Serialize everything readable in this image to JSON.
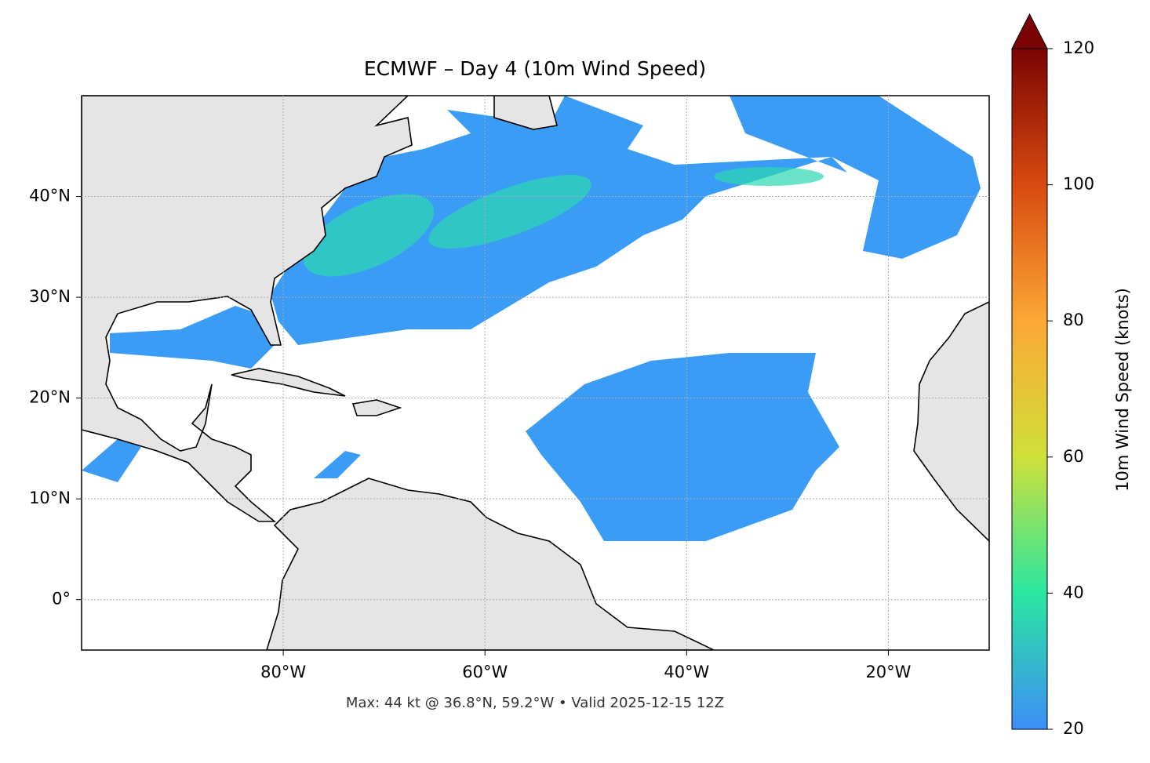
{
  "chart_data": {
    "type": "map",
    "title": "ECMWF – Day 4 (10m Wind Speed)",
    "footer": "Max: 44 kt @ 36.8°N, 59.2°W • Valid 2025-12-15 12Z",
    "xlim": [
      -100,
      -10
    ],
    "xticks": [
      {
        "value": -80,
        "label": "80°W"
      },
      {
        "value": -60,
        "label": "60°W"
      },
      {
        "value": -40,
        "label": "40°W"
      },
      {
        "value": -20,
        "label": "20°W"
      }
    ],
    "ylim": [
      -5,
      50
    ],
    "yticks": [
      {
        "value": 0,
        "label": "0°"
      },
      {
        "value": 10,
        "label": "10°N"
      },
      {
        "value": 20,
        "label": "20°N"
      },
      {
        "value": 30,
        "label": "30°N"
      },
      {
        "value": 40,
        "label": "40°N"
      }
    ],
    "grid": true,
    "colorbar": {
      "label": "10m Wind Speed (knots)",
      "lim": [
        20,
        120
      ],
      "ticks": [
        20,
        40,
        60,
        80,
        100,
        120
      ],
      "colors": [
        "#3e8ef7",
        "#2ae6a0",
        "#cfe03a",
        "#fca835",
        "#d84a10",
        "#7a0403"
      ]
    }
  }
}
